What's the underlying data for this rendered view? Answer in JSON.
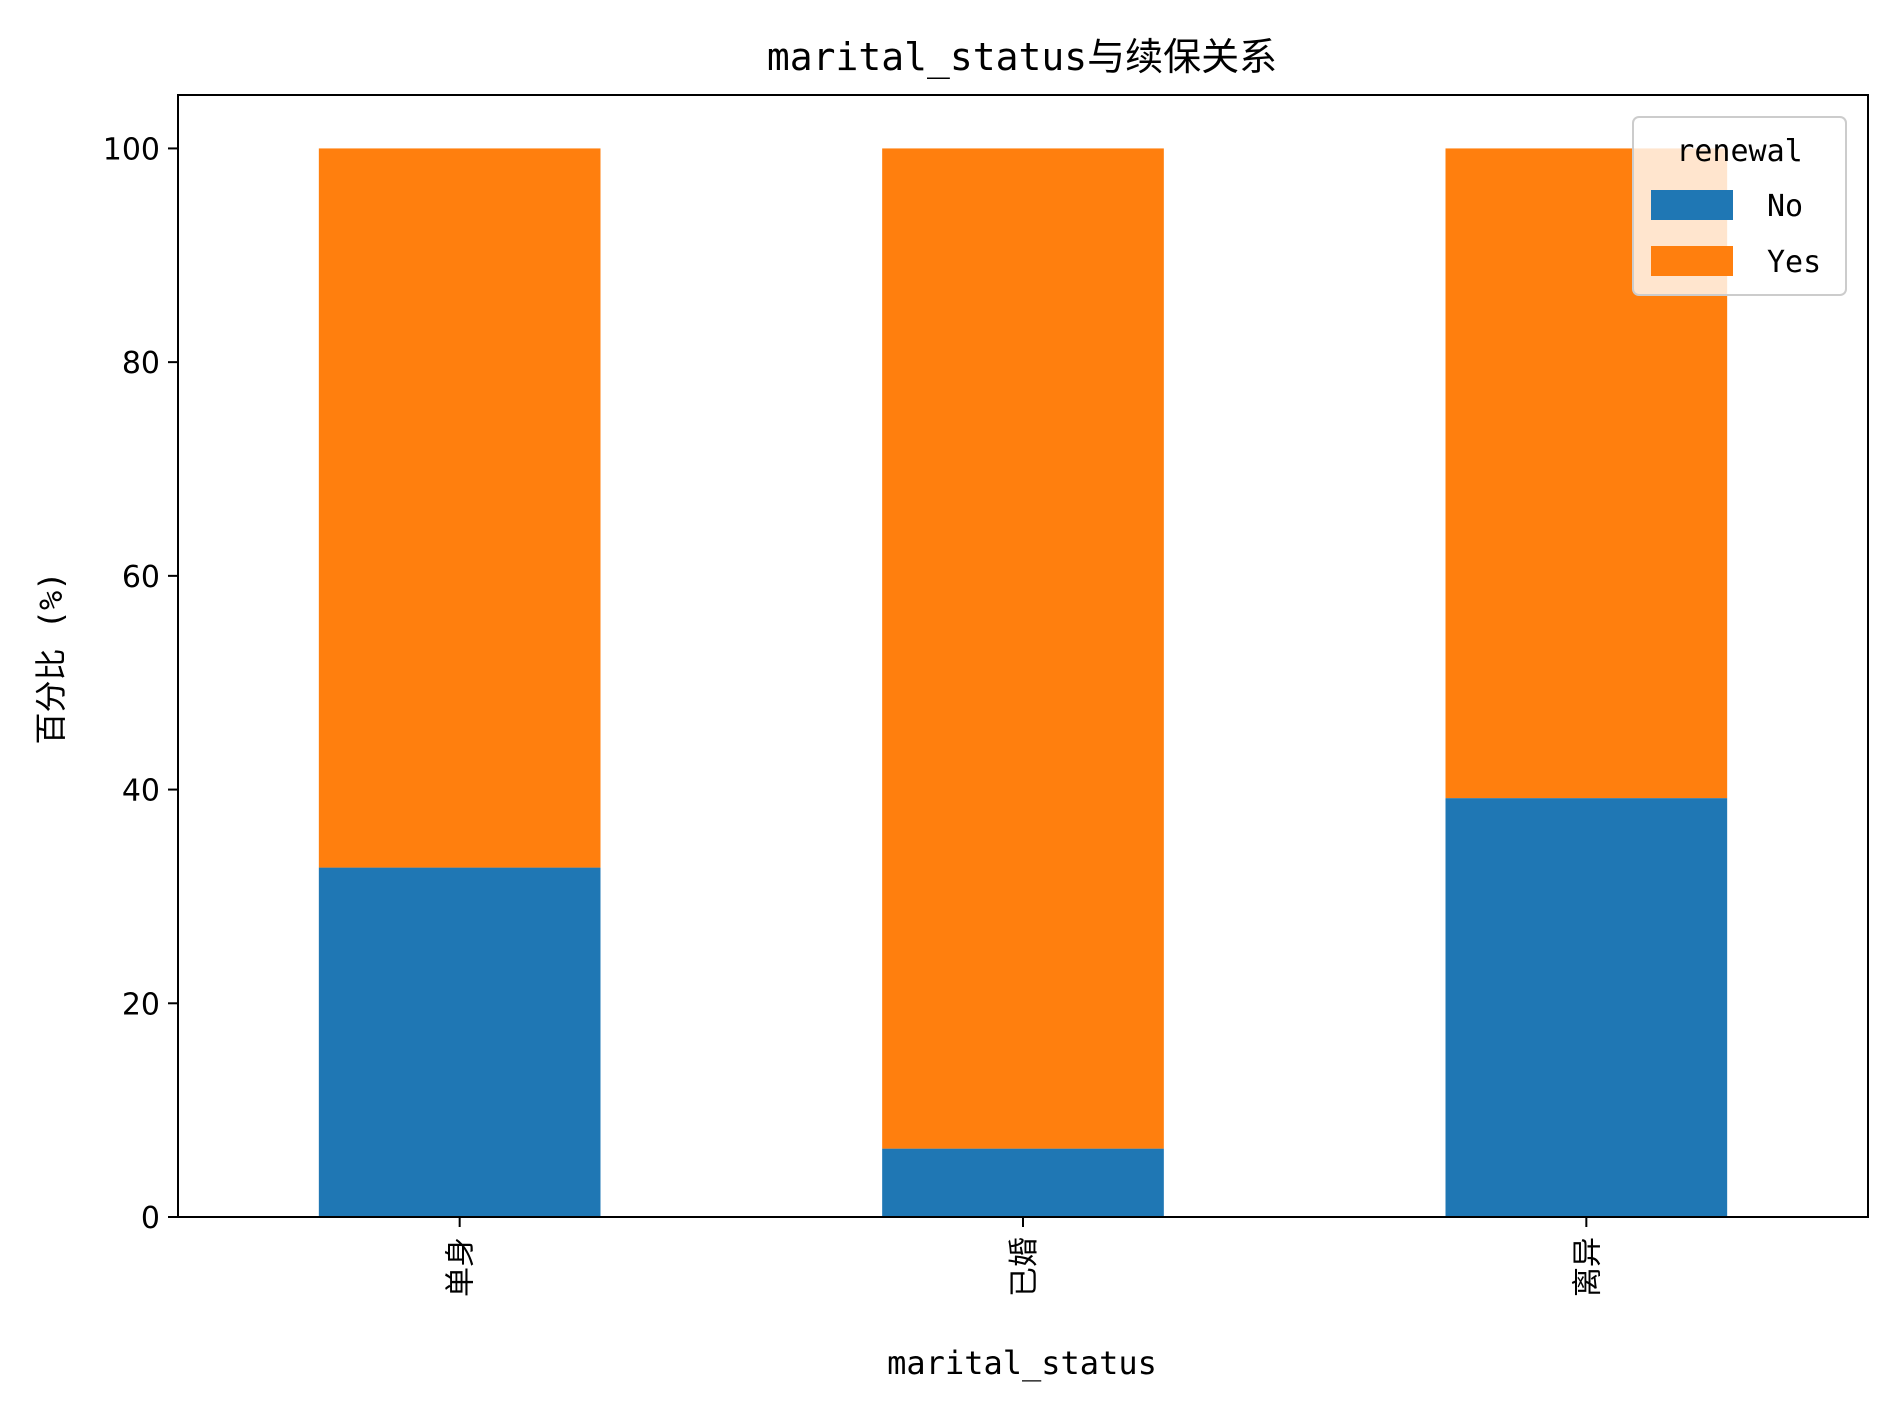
{
  "chart_data": {
    "type": "bar",
    "stacked": true,
    "title": "marital_status与续保关系",
    "xlabel": "marital_status",
    "ylabel": "百分比 (%)",
    "categories": [
      "单身",
      "已婚",
      "离异"
    ],
    "ylim": [
      0,
      105
    ],
    "yticks": [
      0,
      20,
      40,
      60,
      80,
      100
    ],
    "legend": {
      "title": "renewal",
      "position": "top-right"
    },
    "series": [
      {
        "name": "No",
        "color": "#1f77b4",
        "values": [
          32.7,
          6.4,
          39.2
        ]
      },
      {
        "name": "Yes",
        "color": "#ff7f0e",
        "values": [
          67.3,
          93.6,
          60.8
        ]
      }
    ],
    "grid": false
  }
}
